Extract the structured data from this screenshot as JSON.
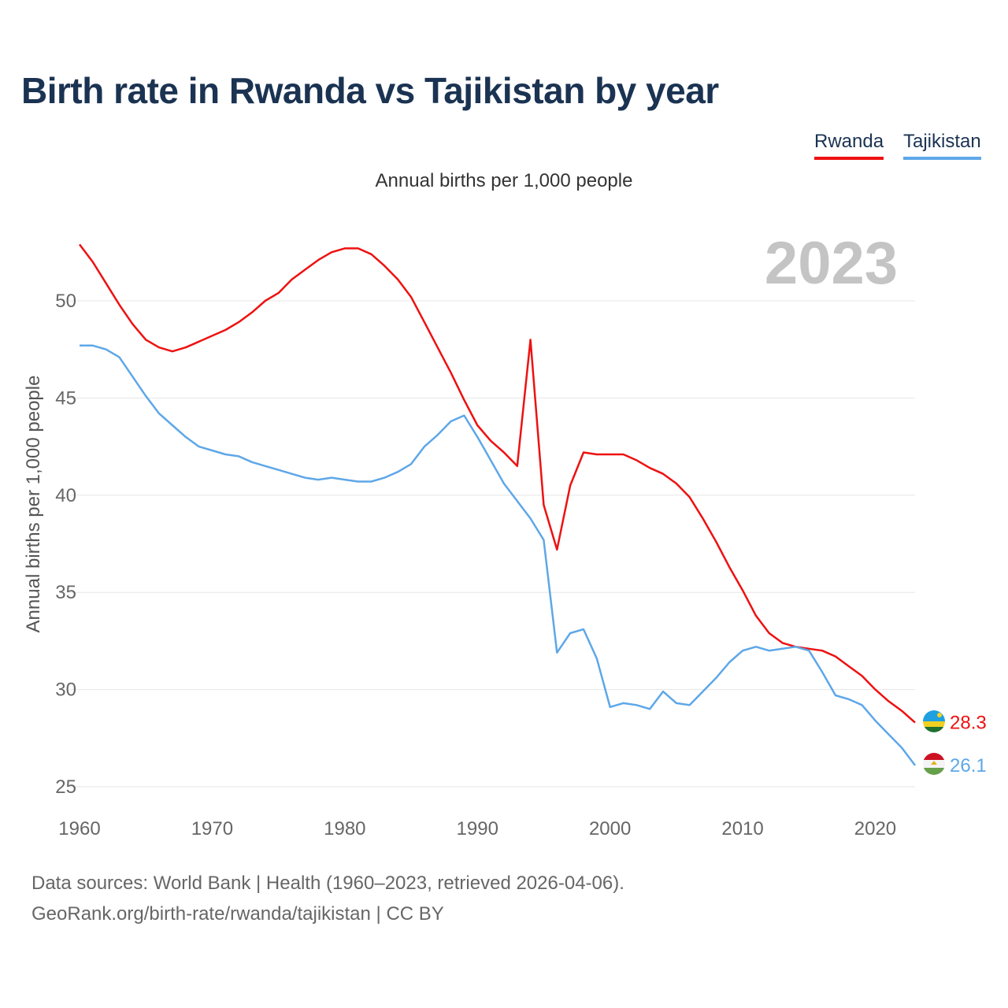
{
  "chart_data": {
    "type": "line",
    "title": "Birth rate in Rwanda vs Tajikistan by year",
    "subtitle": "Annual births per 1,000 people",
    "ylabel": "Annual births per 1,000 people",
    "xlabel": "",
    "year_watermark": "2023",
    "xlim": [
      1960,
      2023
    ],
    "ylim": [
      25,
      53
    ],
    "x_ticks": [
      1960,
      1970,
      1980,
      1990,
      2000,
      2010,
      2020
    ],
    "y_ticks": [
      25,
      30,
      35,
      40,
      45,
      50
    ],
    "grid": true,
    "legend_position": "top-right",
    "x": [
      1960,
      1961,
      1962,
      1963,
      1964,
      1965,
      1966,
      1967,
      1968,
      1969,
      1970,
      1971,
      1972,
      1973,
      1974,
      1975,
      1976,
      1977,
      1978,
      1979,
      1980,
      1981,
      1982,
      1983,
      1984,
      1985,
      1986,
      1987,
      1988,
      1989,
      1990,
      1991,
      1992,
      1993,
      1994,
      1995,
      1996,
      1997,
      1998,
      1999,
      2000,
      2001,
      2002,
      2003,
      2004,
      2005,
      2006,
      2007,
      2008,
      2009,
      2010,
      2011,
      2012,
      2013,
      2014,
      2015,
      2016,
      2017,
      2018,
      2019,
      2020,
      2021,
      2022,
      2023
    ],
    "series": [
      {
        "name": "Rwanda",
        "color": "#ee1111",
        "end_label": "28.3",
        "flag": "rwanda-flag",
        "values": [
          52.9,
          52.0,
          50.9,
          49.8,
          48.8,
          48.0,
          47.6,
          47.4,
          47.6,
          47.9,
          48.2,
          48.5,
          48.9,
          49.4,
          50.0,
          50.4,
          51.1,
          51.6,
          52.1,
          52.5,
          52.7,
          52.7,
          52.4,
          51.8,
          51.1,
          50.2,
          48.9,
          47.6,
          46.3,
          44.9,
          43.6,
          42.8,
          42.2,
          41.5,
          48.0,
          39.5,
          37.2,
          40.5,
          42.2,
          42.1,
          42.1,
          42.1,
          41.8,
          41.4,
          41.1,
          40.6,
          39.9,
          38.8,
          37.6,
          36.3,
          35.1,
          33.8,
          32.9,
          32.4,
          32.2,
          32.1,
          32.0,
          31.7,
          31.2,
          30.7,
          30.0,
          29.4,
          28.9,
          28.3
        ]
      },
      {
        "name": "Tajikistan",
        "color": "#5ea7e8",
        "end_label": "26.1",
        "flag": "tajikistan-flag",
        "values": [
          47.7,
          47.7,
          47.5,
          47.1,
          46.1,
          45.1,
          44.2,
          43.6,
          43.0,
          42.5,
          42.3,
          42.1,
          42.0,
          41.7,
          41.5,
          41.3,
          41.1,
          40.9,
          40.8,
          40.9,
          40.8,
          40.7,
          40.7,
          40.9,
          41.2,
          41.6,
          42.5,
          43.1,
          43.8,
          44.1,
          43.0,
          41.8,
          40.6,
          39.7,
          38.8,
          37.7,
          31.9,
          32.9,
          33.1,
          31.6,
          29.1,
          29.3,
          29.2,
          29.0,
          29.9,
          29.3,
          29.2,
          29.9,
          30.6,
          31.4,
          32.0,
          32.2,
          32.0,
          32.1,
          32.2,
          32.0,
          30.9,
          29.7,
          29.5,
          29.2,
          28.4,
          27.7,
          27.0,
          26.1
        ]
      }
    ]
  },
  "footer": {
    "source": "Data sources: World Bank | Health (1960–2023, retrieved 2026-04-06).",
    "credit": "GeoRank.org/birth-rate/rwanda/tajikistan | CC BY"
  }
}
